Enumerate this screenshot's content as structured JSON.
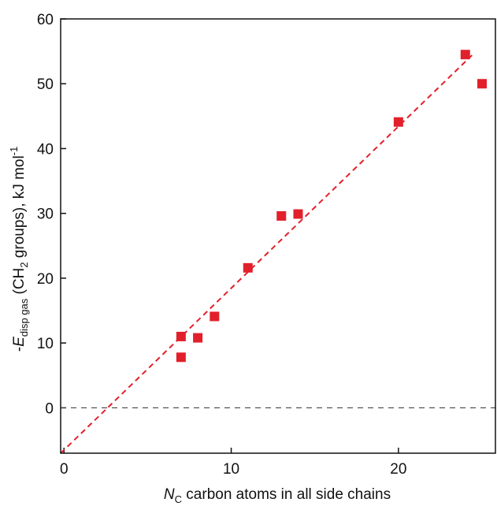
{
  "chart_data": {
    "type": "scatter",
    "xlabel": {
      "prefix": "",
      "symbol": "N",
      "subscript": "C",
      "suffix": " carbon atoms in all side chains"
    },
    "ylabel": {
      "prefix": "-",
      "symbol": "E",
      "subscript": "disp gas",
      "middle_before": " (CH",
      "middle_sub": "2",
      "middle_after": " groups), kJ mol",
      "superscript": "-1"
    },
    "xlim": [
      -0.2,
      25.8
    ],
    "ylim": [
      -7,
      60
    ],
    "x_ticks": [
      0,
      10,
      20
    ],
    "y_ticks": [
      0,
      10,
      20,
      30,
      40,
      50,
      60
    ],
    "x_tick_labels": [
      "0",
      "10",
      "20"
    ],
    "y_tick_labels": [
      "0",
      "10",
      "20",
      "30",
      "40",
      "50",
      "60"
    ],
    "grid": false,
    "points": [
      {
        "x": 7,
        "y": 11.0
      },
      {
        "x": 7,
        "y": 7.8
      },
      {
        "x": 8,
        "y": 10.8
      },
      {
        "x": 9,
        "y": 14.1
      },
      {
        "x": 11,
        "y": 21.6
      },
      {
        "x": 13,
        "y": 29.6
      },
      {
        "x": 14,
        "y": 29.9
      },
      {
        "x": 20,
        "y": 44.1
      },
      {
        "x": 24,
        "y": 54.5
      },
      {
        "x": 25,
        "y": 50.0
      }
    ],
    "fit_line": {
      "x": [
        -0.2,
        24.4
      ],
      "y": [
        -7,
        54.4
      ],
      "style": "dashed"
    },
    "zero_line": {
      "y": 0,
      "style": "dashed"
    },
    "colors": {
      "points": "#e2202b",
      "fit_line": "#e2202b",
      "zero_line": "#444444",
      "axes": "#111111"
    }
  }
}
